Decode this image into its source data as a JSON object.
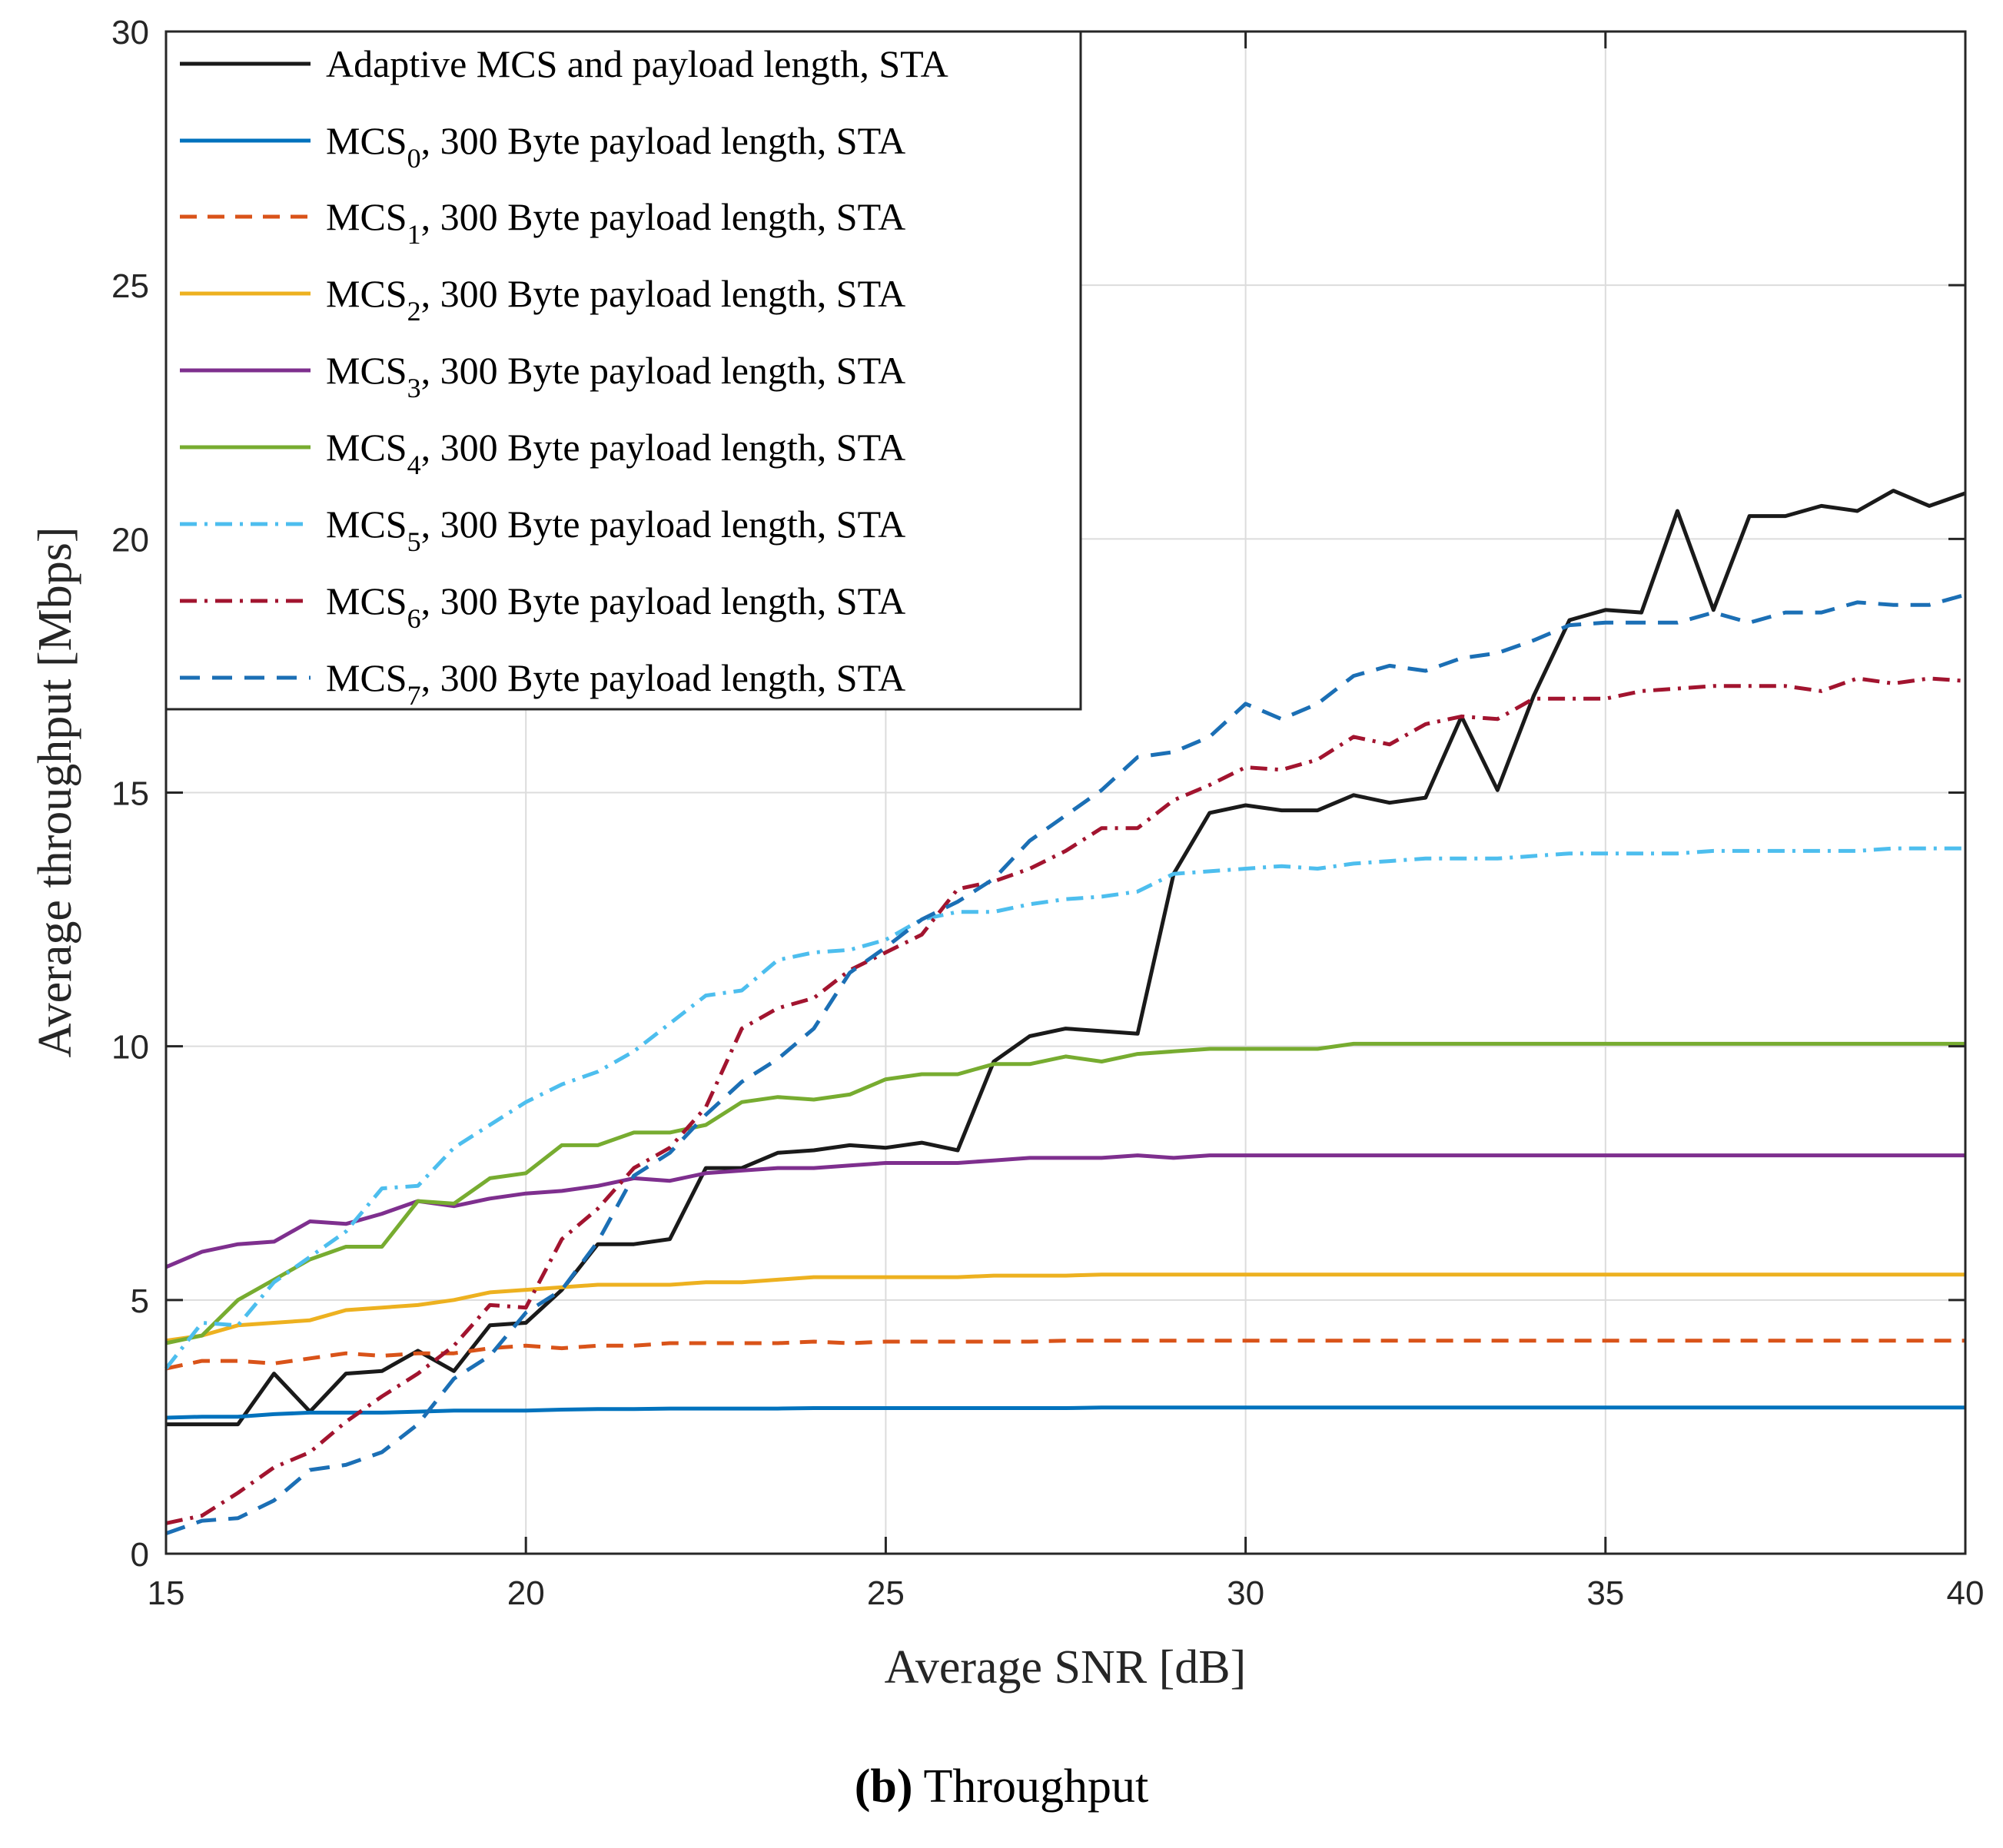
{
  "chart_data": {
    "type": "line",
    "xlabel": "Average SNR [dB]",
    "ylabel": "Average throughput [Mbps]",
    "xlim": [
      15,
      40
    ],
    "ylim": [
      0,
      30
    ],
    "xticks": [
      15,
      20,
      25,
      30,
      35,
      40
    ],
    "yticks": [
      0,
      5,
      10,
      15,
      20,
      25,
      30
    ],
    "grid": true,
    "legend_position": "top-left",
    "caption": {
      "label": "(b)",
      "text": "Throughput"
    },
    "x": [
      15,
      15.5,
      16,
      16.5,
      17,
      17.5,
      18,
      18.5,
      19,
      19.5,
      20,
      20.5,
      21,
      21.5,
      22,
      22.5,
      23,
      23.5,
      24,
      24.5,
      25,
      25.5,
      26,
      26.5,
      27,
      27.5,
      28,
      28.5,
      29,
      29.5,
      30,
      30.5,
      31,
      31.5,
      32,
      32.5,
      33,
      33.5,
      34,
      34.5,
      35,
      35.5,
      36,
      36.5,
      37,
      37.5,
      38,
      38.5,
      39,
      39.5,
      40
    ],
    "series": [
      {
        "name": "Adaptive MCS and payload length, STA",
        "legend_main": "Adaptive MCS and payload length, STA",
        "legend_sub": "",
        "legend_rest": "",
        "color": "#1a1a1a",
        "dash": "",
        "values": [
          2.55,
          2.55,
          2.55,
          3.55,
          2.8,
          3.55,
          3.6,
          4.0,
          3.6,
          4.5,
          4.55,
          5.2,
          6.1,
          6.1,
          6.2,
          7.6,
          7.6,
          7.9,
          7.95,
          8.05,
          8.0,
          8.1,
          7.95,
          9.7,
          10.2,
          10.35,
          10.3,
          10.25,
          13.4,
          14.6,
          14.75,
          14.65,
          14.65,
          14.95,
          14.8,
          14.9,
          16.5,
          15.05,
          16.9,
          18.4,
          18.6,
          18.55,
          20.55,
          18.6,
          20.45,
          20.45,
          20.65,
          20.55,
          20.95,
          20.65,
          20.9
        ]
      },
      {
        "name": "MCS0, 300 Byte payload length, STA",
        "legend_main": "MCS",
        "legend_sub": "0",
        "legend_rest": ", 300 Byte payload length, STA",
        "color": "#0072BD",
        "dash": "",
        "values": [
          2.68,
          2.7,
          2.7,
          2.75,
          2.78,
          2.78,
          2.78,
          2.8,
          2.82,
          2.82,
          2.82,
          2.84,
          2.85,
          2.85,
          2.86,
          2.86,
          2.86,
          2.86,
          2.87,
          2.87,
          2.87,
          2.87,
          2.87,
          2.87,
          2.87,
          2.87,
          2.88,
          2.88,
          2.88,
          2.88,
          2.88,
          2.88,
          2.88,
          2.88,
          2.88,
          2.88,
          2.88,
          2.88,
          2.88,
          2.88,
          2.88,
          2.88,
          2.88,
          2.88,
          2.88,
          2.88,
          2.88,
          2.88,
          2.88,
          2.88,
          2.88
        ]
      },
      {
        "name": "MCS1, 300 Byte payload length, STA",
        "legend_main": "MCS",
        "legend_sub": "1",
        "legend_rest": ", 300 Byte payload length, STA",
        "color": "#D95319",
        "dash": "22,14",
        "values": [
          3.65,
          3.8,
          3.8,
          3.75,
          3.85,
          3.95,
          3.9,
          3.95,
          3.95,
          4.05,
          4.1,
          4.05,
          4.1,
          4.1,
          4.15,
          4.15,
          4.15,
          4.15,
          4.18,
          4.15,
          4.18,
          4.18,
          4.18,
          4.18,
          4.18,
          4.2,
          4.2,
          4.2,
          4.2,
          4.2,
          4.2,
          4.2,
          4.2,
          4.2,
          4.2,
          4.2,
          4.2,
          4.2,
          4.2,
          4.2,
          4.2,
          4.2,
          4.2,
          4.2,
          4.2,
          4.2,
          4.2,
          4.2,
          4.2,
          4.2,
          4.2
        ]
      },
      {
        "name": "MCS2, 300 Byte payload length, STA",
        "legend_main": "MCS",
        "legend_sub": "2",
        "legend_rest": ", 300 Byte payload length, STA",
        "color": "#EDB120",
        "dash": "",
        "values": [
          4.2,
          4.3,
          4.5,
          4.55,
          4.6,
          4.8,
          4.85,
          4.9,
          5.0,
          5.15,
          5.2,
          5.25,
          5.3,
          5.3,
          5.3,
          5.35,
          5.35,
          5.4,
          5.45,
          5.45,
          5.45,
          5.45,
          5.45,
          5.48,
          5.48,
          5.48,
          5.5,
          5.5,
          5.5,
          5.5,
          5.5,
          5.5,
          5.5,
          5.5,
          5.5,
          5.5,
          5.5,
          5.5,
          5.5,
          5.5,
          5.5,
          5.5,
          5.5,
          5.5,
          5.5,
          5.5,
          5.5,
          5.5,
          5.5,
          5.5,
          5.5
        ]
      },
      {
        "name": "MCS3, 300 Byte payload length, STA",
        "legend_main": "MCS",
        "legend_sub": "3",
        "legend_rest": ", 300 Byte payload length, STA",
        "color": "#7E2F8E",
        "dash": "",
        "values": [
          5.65,
          5.95,
          6.1,
          6.15,
          6.55,
          6.5,
          6.7,
          6.95,
          6.85,
          7.0,
          7.1,
          7.15,
          7.25,
          7.4,
          7.35,
          7.5,
          7.55,
          7.6,
          7.6,
          7.65,
          7.7,
          7.7,
          7.7,
          7.75,
          7.8,
          7.8,
          7.8,
          7.85,
          7.8,
          7.85,
          7.85,
          7.85,
          7.85,
          7.85,
          7.85,
          7.85,
          7.85,
          7.85,
          7.85,
          7.85,
          7.85,
          7.85,
          7.85,
          7.85,
          7.85,
          7.85,
          7.85,
          7.85,
          7.85,
          7.85,
          7.85
        ]
      },
      {
        "name": "MCS4, 300 Byte payload length, STA",
        "legend_main": "MCS",
        "legend_sub": "4",
        "legend_rest": ", 300 Byte payload length, STA",
        "color": "#77AC30",
        "dash": "",
        "values": [
          4.15,
          4.3,
          5.0,
          5.4,
          5.8,
          6.05,
          6.05,
          6.95,
          6.9,
          7.4,
          7.5,
          8.05,
          8.05,
          8.3,
          8.3,
          8.45,
          8.9,
          9.0,
          8.95,
          9.05,
          9.35,
          9.45,
          9.45,
          9.65,
          9.65,
          9.8,
          9.7,
          9.85,
          9.9,
          9.95,
          9.95,
          9.95,
          9.95,
          10.05,
          10.05,
          10.05,
          10.05,
          10.05,
          10.05,
          10.05,
          10.05,
          10.05,
          10.05,
          10.05,
          10.05,
          10.05,
          10.05,
          10.05,
          10.05,
          10.05,
          10.05
        ]
      },
      {
        "name": "MCS5, 300 Byte payload length, STA",
        "legend_main": "MCS",
        "legend_sub": "5",
        "legend_rest": ", 300 Byte payload length, STA",
        "color": "#4DBEEE",
        "dash": "22,10,4,10",
        "values": [
          3.65,
          4.55,
          4.5,
          5.35,
          5.85,
          6.35,
          7.2,
          7.25,
          8.0,
          8.45,
          8.9,
          9.25,
          9.5,
          9.9,
          10.45,
          11.0,
          11.1,
          11.7,
          11.85,
          11.9,
          12.1,
          12.5,
          12.65,
          12.65,
          12.8,
          12.9,
          12.95,
          13.05,
          13.4,
          13.45,
          13.5,
          13.55,
          13.5,
          13.6,
          13.65,
          13.7,
          13.7,
          13.7,
          13.75,
          13.8,
          13.8,
          13.8,
          13.8,
          13.85,
          13.85,
          13.85,
          13.85,
          13.85,
          13.9,
          13.9,
          13.9
        ]
      },
      {
        "name": "MCS6, 300 Byte payload length, STA",
        "legend_main": "MCS",
        "legend_sub": "6",
        "legend_rest": ", 300 Byte payload length, STA",
        "color": "#A2142F",
        "dash": "22,10,4,10",
        "values": [
          0.6,
          0.75,
          1.2,
          1.7,
          2.0,
          2.6,
          3.1,
          3.55,
          4.1,
          4.9,
          4.85,
          6.2,
          6.8,
          7.6,
          8.0,
          8.8,
          10.35,
          10.75,
          10.95,
          11.5,
          11.85,
          12.2,
          13.1,
          13.25,
          13.5,
          13.85,
          14.3,
          14.3,
          14.85,
          15.15,
          15.5,
          15.45,
          15.65,
          16.1,
          15.95,
          16.35,
          16.5,
          16.45,
          16.85,
          16.85,
          16.85,
          17.0,
          17.05,
          17.1,
          17.1,
          17.1,
          17.0,
          17.25,
          17.15,
          17.25,
          17.2
        ]
      },
      {
        "name": "MCS7, 300 Byte payload length, STA",
        "legend_main": "MCS",
        "legend_sub": "7",
        "legend_rest": ", 300 Byte payload length, STA",
        "color": "#1b6fb5",
        "dash": "26,16",
        "values": [
          0.4,
          0.65,
          0.7,
          1.05,
          1.65,
          1.75,
          2.0,
          2.55,
          3.45,
          3.9,
          4.75,
          5.2,
          6.15,
          7.45,
          7.9,
          8.65,
          9.3,
          9.75,
          10.35,
          11.45,
          11.95,
          12.5,
          12.85,
          13.3,
          14.05,
          14.55,
          15.05,
          15.7,
          15.8,
          16.1,
          16.75,
          16.45,
          16.75,
          17.3,
          17.5,
          17.4,
          17.65,
          17.75,
          18.0,
          18.3,
          18.35,
          18.35,
          18.35,
          18.55,
          18.35,
          18.55,
          18.55,
          18.75,
          18.7,
          18.7,
          18.9
        ]
      }
    ]
  }
}
